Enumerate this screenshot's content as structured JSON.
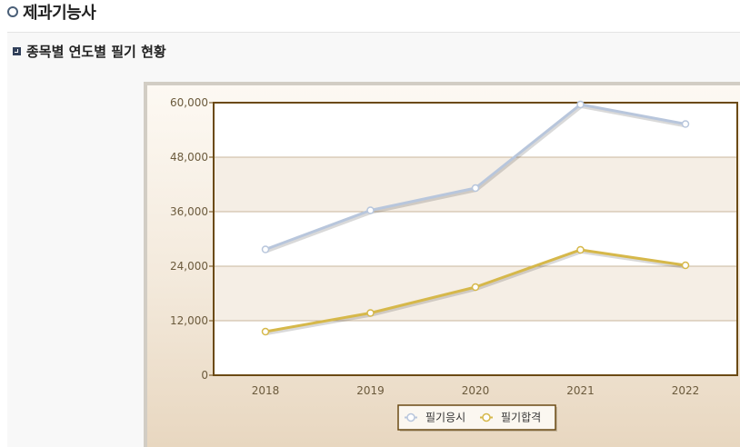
{
  "page": {
    "title": "제과기능사"
  },
  "section": {
    "title": "종목별 연도별 필기 현황"
  },
  "chart_data": {
    "type": "line",
    "categories": [
      "2018",
      "2019",
      "2020",
      "2021",
      "2022"
    ],
    "series": [
      {
        "name": "필기응시",
        "values": [
          27700,
          36300,
          41200,
          59600,
          55300
        ],
        "color": "#b8c6dc"
      },
      {
        "name": "필기합격",
        "values": [
          9600,
          13700,
          19400,
          27600,
          24200
        ],
        "color": "#d6b84a"
      }
    ],
    "yticks": [
      "0",
      "12,000",
      "24,000",
      "36,000",
      "48,000",
      "60,000"
    ],
    "ylim": [
      0,
      60000
    ],
    "grid": true,
    "legend_position": "bottom-center"
  }
}
